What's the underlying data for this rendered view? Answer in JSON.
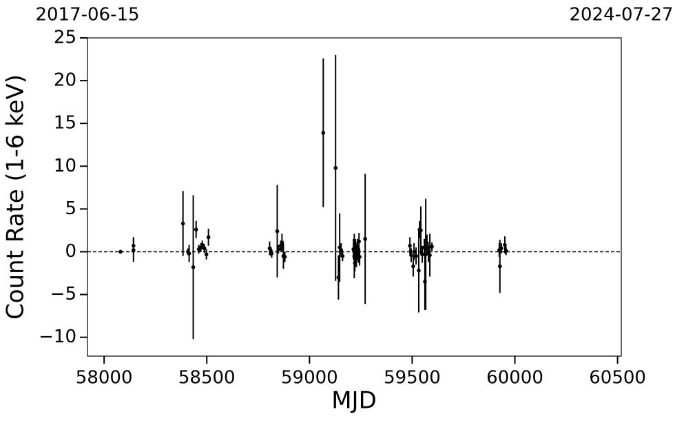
{
  "chart_data": {
    "type": "errorbar",
    "xlabel": "MJD",
    "ylabel": "Count Rate (1-6 keV)",
    "xlim": [
      57919,
      60518
    ],
    "ylim": [
      -12.2,
      25
    ],
    "xticks": [
      58000,
      58500,
      59000,
      59500,
      60000,
      60500
    ],
    "yticks": [
      {
        "value": -10,
        "label": "−10"
      },
      {
        "value": -5,
        "label": "−5"
      },
      0,
      5,
      10,
      15,
      20,
      25
    ],
    "x2ticks": [
      {
        "value": 57919,
        "label": "2017-06-15"
      },
      {
        "value": 60518,
        "label": "2024-07-27"
      }
    ],
    "hline": 0,
    "color": "#000000",
    "x": [
      58080,
      58143,
      58143,
      58384,
      58408,
      58414,
      58434,
      58448,
      58461,
      58471,
      58478,
      58488,
      58498,
      58508,
      58806,
      58813,
      58816,
      58843,
      58849,
      58860,
      58866,
      58873,
      58880,
      59067,
      59127,
      59141,
      59147,
      59154,
      59161,
      59214,
      59218,
      59221,
      59224,
      59228,
      59231,
      59234,
      59238,
      59241,
      59244,
      59271,
      59489,
      59495,
      59505,
      59509,
      59519,
      59532,
      59536,
      59542,
      59549,
      59559,
      59562,
      59566,
      59572,
      59579,
      59586,
      59596,
      59924,
      59927,
      59934,
      59951,
      59957
    ],
    "values": [
      0,
      0.7,
      0.2,
      3.3,
      0,
      -0.2,
      -1.8,
      2.6,
      0.3,
      0.5,
      0.8,
      0.4,
      -0.3,
      1.7,
      0.4,
      0,
      -0.2,
      2.4,
      0.3,
      0.7,
      1.1,
      -0.5,
      -0.6,
      13.9,
      9.8,
      -3,
      0.5,
      0.2,
      -0.5,
      0.3,
      -0.5,
      -1.3,
      0.5,
      -0.8,
      0.1,
      0.5,
      -0.3,
      1.2,
      -0.6,
      1.5,
      0.7,
      -0.4,
      -1.7,
      0,
      -0.5,
      -2.2,
      2.6,
      2.5,
      -0.3,
      0.5,
      -3.5,
      -0.3,
      1,
      -0.2,
      -0.4,
      0.6,
      0.2,
      -1.7,
      0.4,
      0.8,
      0.1
    ],
    "errors": [
      0.1,
      1,
      1.4,
      3.8,
      0.4,
      1,
      8.4,
      1,
      0.5,
      0.5,
      0.5,
      0.5,
      0.6,
      1,
      0.8,
      0.5,
      0.5,
      5.4,
      0.5,
      0.6,
      1,
      1.5,
      0.6,
      8.7,
      13.2,
      2.6,
      4,
      0.8,
      0.6,
      1.2,
      2.6,
      1,
      1,
      1,
      1,
      1,
      1,
      1,
      1,
      7.6,
      1,
      0.8,
      1.2,
      1,
      1,
      4.9,
      1,
      2.8,
      1,
      1,
      3.3,
      6.5,
      1,
      1,
      2.5,
      0.5,
      0.8,
      3.1,
      0.6,
      1,
      0.5
    ]
  }
}
